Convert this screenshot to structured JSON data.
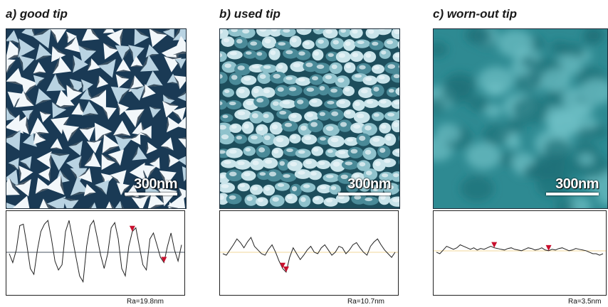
{
  "panels": [
    {
      "title": "a) good tip",
      "scale_label": "300nm",
      "roughness_label": "Ra=19.8nm",
      "image_color": "#1a3a55",
      "texture": "sharp-triangular-pyramids",
      "profile": [
        50,
        38,
        55,
        88,
        90,
        62,
        30,
        22,
        55,
        80,
        90,
        95,
        70,
        40,
        28,
        35,
        80,
        95,
        70,
        45,
        20,
        12,
        60,
        88,
        95,
        72,
        48,
        30,
        50,
        85,
        92,
        70,
        30,
        20,
        60,
        80,
        85,
        60,
        35,
        28,
        70,
        78,
        62,
        45,
        38,
        60,
        78,
        55,
        40,
        62
      ],
      "markers": [
        35,
        44
      ]
    },
    {
      "title": "b) used tip",
      "scale_label": "300nm",
      "roughness_label": "Ra=10.7nm",
      "image_color": "#4a8a98",
      "texture": "rounded-grains",
      "profile": [
        50,
        48,
        55,
        62,
        70,
        65,
        58,
        66,
        72,
        60,
        55,
        50,
        48,
        56,
        62,
        52,
        40,
        30,
        25,
        45,
        58,
        50,
        42,
        48,
        55,
        60,
        52,
        50,
        58,
        62,
        55,
        48,
        52,
        60,
        58,
        50,
        55,
        62,
        65,
        58,
        52,
        48,
        60,
        66,
        70,
        62,
        55,
        50,
        45,
        52
      ],
      "markers": [
        17,
        18
      ]
    },
    {
      "title": "c) worn-out tip",
      "scale_label": "300nm",
      "roughness_label": "Ra=3.5nm",
      "image_color": "#2e8a92",
      "texture": "smooth-blurred",
      "profile": [
        52,
        50,
        55,
        60,
        58,
        56,
        58,
        62,
        60,
        58,
        56,
        58,
        55,
        57,
        56,
        58,
        60,
        58,
        57,
        56,
        55,
        57,
        58,
        56,
        55,
        54,
        56,
        58,
        57,
        55,
        56,
        58,
        55,
        54,
        56,
        55,
        57,
        58,
        56,
        54,
        55,
        57,
        56,
        55,
        54,
        52,
        50,
        50,
        48,
        50
      ],
      "markers": [
        17,
        33
      ]
    }
  ]
}
